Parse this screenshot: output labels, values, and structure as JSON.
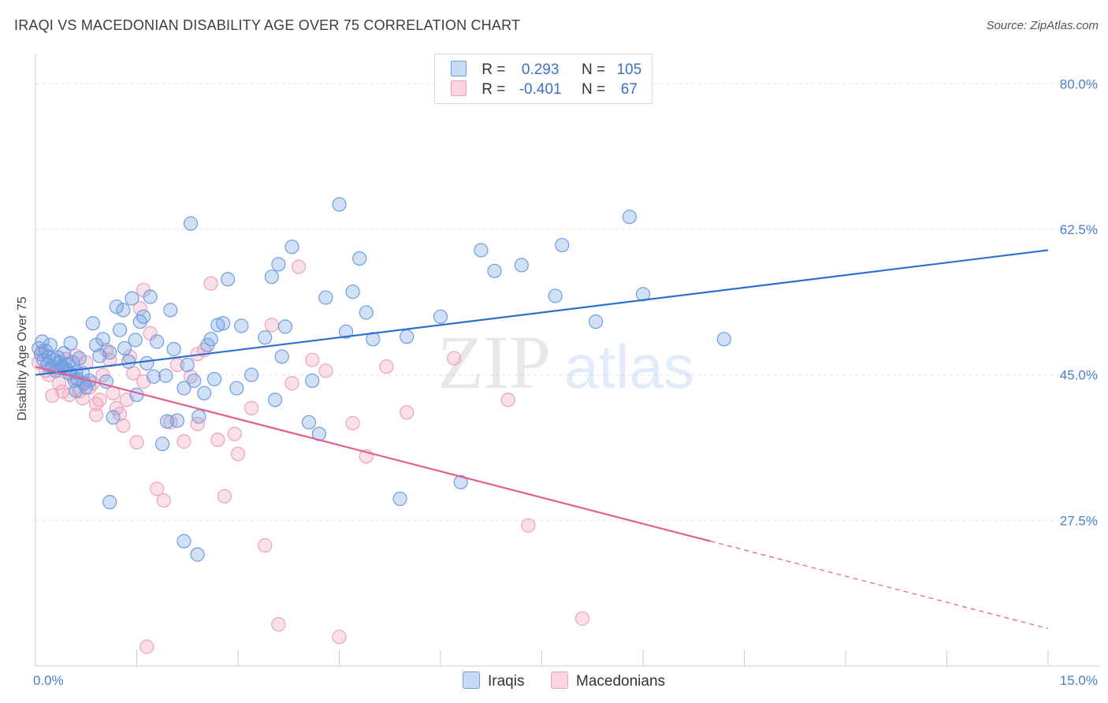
{
  "title": "IRAQI VS MACEDONIAN DISABILITY AGE OVER 75 CORRELATION CHART",
  "source": "Source: ZipAtlas.com",
  "watermark": {
    "zip": "ZIP",
    "atlas": "atlas"
  },
  "legend": {
    "iraqis": {
      "r_label": "R =",
      "r_value": "0.293",
      "n_label": "N =",
      "n_value": "105"
    },
    "macedonians": {
      "r_label": "R =",
      "r_value": "-0.401",
      "n_label": "N =",
      "n_value": "67"
    }
  },
  "colors": {
    "iraqis": "#6f9ee0",
    "macedonians": "#f0a0bc",
    "iraqis_line": "#2d6fcf",
    "macedonians_line": "#e06090"
  },
  "chart_data": {
    "type": "scatter",
    "title": "IRAQI VS MACEDONIAN DISABILITY AGE OVER 75 CORRELATION CHART",
    "xlabel": "",
    "ylabel": "Disability Age Over 75",
    "xlim": [
      0,
      15
    ],
    "ylim": [
      10,
      82.5
    ],
    "x_tick_labels": [
      "0.0%",
      "15.0%"
    ],
    "y_ticks": [
      27.5,
      45.0,
      62.5,
      80.0
    ],
    "y_tick_labels": [
      "27.5%",
      "45.0%",
      "62.5%",
      "80.0%"
    ],
    "grid": true,
    "legend_placement": "bottom-center",
    "series": [
      {
        "name": "Iraqis",
        "trend": {
          "x": [
            0,
            15
          ],
          "y": [
            45.0,
            60.0
          ]
        },
        "points": [
          [
            0.05,
            48.2
          ],
          [
            0.08,
            47.5
          ],
          [
            0.1,
            49.0
          ],
          [
            0.12,
            46.8
          ],
          [
            0.15,
            47.9
          ],
          [
            0.18,
            46.2
          ],
          [
            0.2,
            47.2
          ],
          [
            0.22,
            48.6
          ],
          [
            0.25,
            46.0
          ],
          [
            0.28,
            46.8
          ],
          [
            0.3,
            45.5
          ],
          [
            0.33,
            47.1
          ],
          [
            0.35,
            46.5
          ],
          [
            0.38,
            45.8
          ],
          [
            0.4,
            46.0
          ],
          [
            0.42,
            47.6
          ],
          [
            0.45,
            45.7
          ],
          [
            0.48,
            46.3
          ],
          [
            0.5,
            45.2
          ],
          [
            0.52,
            48.8
          ],
          [
            0.55,
            46.5
          ],
          [
            0.58,
            44.3
          ],
          [
            0.6,
            45.3
          ],
          [
            0.62,
            44.5
          ],
          [
            0.65,
            47.0
          ],
          [
            0.7,
            45.2
          ],
          [
            0.72,
            44.0
          ],
          [
            0.75,
            43.5
          ],
          [
            0.8,
            44.3
          ],
          [
            0.85,
            51.2
          ],
          [
            0.9,
            48.6
          ],
          [
            0.95,
            47.3
          ],
          [
            1.0,
            49.3
          ],
          [
            1.05,
            44.2
          ],
          [
            1.1,
            47.7
          ],
          [
            1.15,
            39.9
          ],
          [
            1.2,
            53.2
          ],
          [
            1.25,
            50.4
          ],
          [
            1.3,
            52.8
          ],
          [
            1.32,
            48.2
          ],
          [
            1.38,
            46.6
          ],
          [
            1.43,
            54.2
          ],
          [
            1.48,
            49.2
          ],
          [
            1.5,
            42.6
          ],
          [
            1.55,
            51.4
          ],
          [
            1.6,
            52.0
          ],
          [
            1.65,
            46.4
          ],
          [
            1.7,
            54.4
          ],
          [
            1.75,
            44.8
          ],
          [
            1.8,
            49.0
          ],
          [
            1.88,
            36.7
          ],
          [
            1.93,
            44.9
          ],
          [
            1.95,
            39.4
          ],
          [
            2.0,
            52.8
          ],
          [
            2.05,
            48.1
          ],
          [
            2.1,
            39.5
          ],
          [
            2.2,
            43.4
          ],
          [
            2.25,
            46.2
          ],
          [
            2.3,
            63.2
          ],
          [
            2.35,
            44.3
          ],
          [
            2.42,
            40.0
          ],
          [
            2.5,
            42.8
          ],
          [
            2.55,
            48.6
          ],
          [
            2.6,
            49.3
          ],
          [
            2.65,
            44.5
          ],
          [
            2.7,
            51.0
          ],
          [
            2.78,
            51.2
          ],
          [
            2.85,
            56.5
          ],
          [
            2.98,
            43.4
          ],
          [
            3.05,
            50.9
          ],
          [
            3.2,
            45.0
          ],
          [
            3.4,
            49.5
          ],
          [
            3.5,
            56.8
          ],
          [
            3.55,
            42.0
          ],
          [
            3.6,
            58.3
          ],
          [
            3.65,
            47.2
          ],
          [
            3.7,
            50.8
          ],
          [
            3.8,
            60.4
          ],
          [
            4.05,
            39.3
          ],
          [
            4.1,
            44.3
          ],
          [
            4.2,
            37.9
          ],
          [
            4.3,
            54.3
          ],
          [
            4.5,
            65.5
          ],
          [
            4.6,
            50.2
          ],
          [
            4.7,
            55.0
          ],
          [
            4.8,
            59.0
          ],
          [
            4.9,
            52.5
          ],
          [
            5.0,
            49.3
          ],
          [
            5.4,
            30.1
          ],
          [
            5.5,
            49.6
          ],
          [
            6.0,
            52.0
          ],
          [
            6.3,
            32.1
          ],
          [
            6.6,
            60.0
          ],
          [
            6.8,
            57.5
          ],
          [
            7.2,
            58.2
          ],
          [
            7.7,
            54.5
          ],
          [
            7.8,
            60.6
          ],
          [
            8.3,
            51.4
          ],
          [
            8.8,
            64.0
          ],
          [
            9.0,
            54.7
          ],
          [
            10.2,
            49.3
          ],
          [
            0.6,
            43.1
          ],
          [
            1.1,
            29.7
          ],
          [
            2.2,
            25.0
          ],
          [
            2.4,
            23.4
          ]
        ]
      },
      {
        "name": "Macedonians",
        "trend": {
          "x": [
            0,
            10.0
          ],
          "y": [
            46.0,
            25.0
          ]
        },
        "trend_dashed": {
          "x": [
            10.0,
            15.0
          ],
          "y": [
            25.0,
            14.5
          ]
        },
        "points": [
          [
            0.05,
            46.5
          ],
          [
            0.1,
            47.8
          ],
          [
            0.15,
            45.5
          ],
          [
            0.2,
            45.0
          ],
          [
            0.25,
            42.5
          ],
          [
            0.3,
            45.8
          ],
          [
            0.35,
            44.0
          ],
          [
            0.4,
            43.0
          ],
          [
            0.45,
            46.9
          ],
          [
            0.5,
            42.6
          ],
          [
            0.55,
            44.8
          ],
          [
            0.6,
            47.3
          ],
          [
            0.65,
            43.0
          ],
          [
            0.7,
            42.2
          ],
          [
            0.75,
            46.5
          ],
          [
            0.8,
            43.5
          ],
          [
            0.85,
            44.0
          ],
          [
            0.9,
            41.5
          ],
          [
            0.95,
            42.0
          ],
          [
            1.0,
            45.0
          ],
          [
            1.05,
            48.0
          ],
          [
            1.1,
            46.8
          ],
          [
            1.15,
            42.8
          ],
          [
            1.2,
            41.0
          ],
          [
            1.25,
            40.3
          ],
          [
            1.3,
            38.9
          ],
          [
            1.35,
            42.0
          ],
          [
            1.4,
            47.2
          ],
          [
            1.45,
            45.2
          ],
          [
            1.5,
            36.9
          ],
          [
            1.55,
            53.0
          ],
          [
            1.6,
            55.2
          ],
          [
            1.7,
            50.0
          ],
          [
            1.8,
            31.3
          ],
          [
            1.9,
            29.9
          ],
          [
            2.0,
            39.3
          ],
          [
            2.1,
            46.2
          ],
          [
            2.2,
            37.0
          ],
          [
            2.3,
            44.8
          ],
          [
            2.4,
            39.1
          ],
          [
            2.5,
            48.0
          ],
          [
            2.6,
            56.0
          ],
          [
            2.7,
            37.2
          ],
          [
            2.8,
            30.4
          ],
          [
            3.0,
            35.5
          ],
          [
            3.2,
            41.0
          ],
          [
            3.4,
            24.5
          ],
          [
            3.5,
            51.0
          ],
          [
            3.6,
            15.0
          ],
          [
            3.8,
            44.0
          ],
          [
            3.9,
            58.0
          ],
          [
            4.1,
            46.8
          ],
          [
            4.3,
            45.5
          ],
          [
            4.5,
            13.5
          ],
          [
            4.7,
            39.2
          ],
          [
            4.9,
            35.2
          ],
          [
            5.2,
            46.0
          ],
          [
            5.5,
            40.5
          ],
          [
            6.2,
            47.0
          ],
          [
            7.0,
            42.0
          ],
          [
            7.3,
            26.9
          ],
          [
            1.6,
            44.2
          ],
          [
            0.9,
            40.2
          ],
          [
            2.95,
            37.9
          ],
          [
            2.4,
            47.5
          ],
          [
            1.65,
            12.3
          ],
          [
            8.1,
            15.7
          ]
        ]
      }
    ]
  },
  "bottom_legend": {
    "iraqis": "Iraqis",
    "macedonians": "Macedonians"
  }
}
